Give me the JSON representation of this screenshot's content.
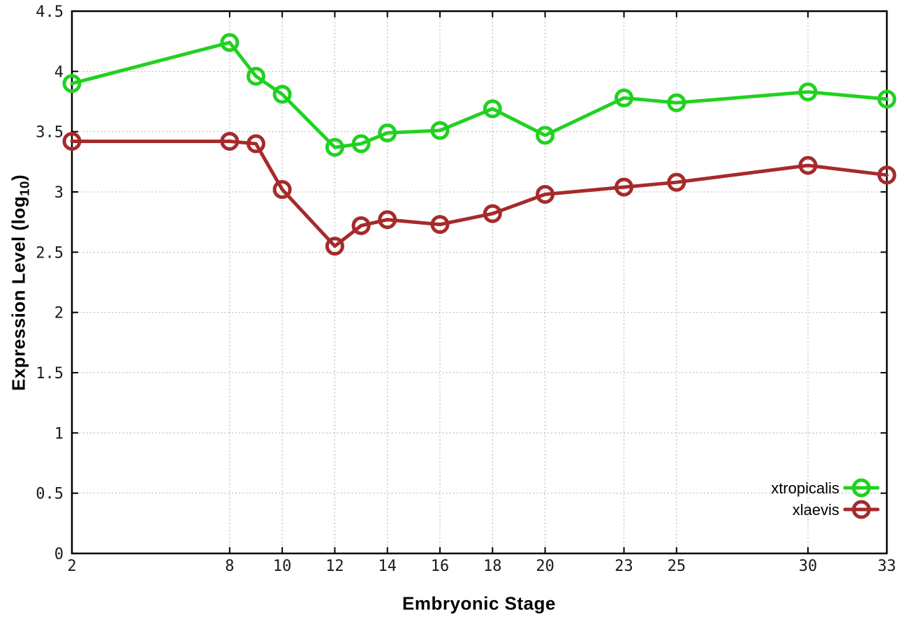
{
  "chart_data": {
    "type": "line",
    "title": "",
    "xlabel": "Embryonic Stage",
    "ylabel": "Expression Level (log10)",
    "ylabel_parts": {
      "main": "Expression Level (log",
      "sub": "10",
      "end": ")"
    },
    "xlim": [
      2,
      33
    ],
    "ylim": [
      0,
      4.5
    ],
    "xticks": [
      2,
      8,
      10,
      12,
      14,
      16,
      18,
      20,
      23,
      25,
      30,
      33
    ],
    "yticks": [
      0,
      0.5,
      1,
      1.5,
      2,
      2.5,
      3,
      3.5,
      4,
      4.5
    ],
    "grid": "dotted",
    "legend_position": "inside-bottom-right",
    "marker": "open-circle",
    "x": [
      2,
      8,
      9,
      10,
      12,
      13,
      14,
      16,
      18,
      20,
      23,
      25,
      30,
      33
    ],
    "series": [
      {
        "name": "xtropicalis",
        "color": "#21d121",
        "values": [
          3.9,
          4.24,
          3.96,
          3.81,
          3.37,
          3.4,
          3.49,
          3.51,
          3.69,
          3.47,
          3.78,
          3.74,
          3.83,
          3.77
        ]
      },
      {
        "name": "xlaevis",
        "color": "#a62a2a",
        "values": [
          3.42,
          3.42,
          3.4,
          3.02,
          2.55,
          2.72,
          2.77,
          2.73,
          2.82,
          2.98,
          3.04,
          3.08,
          3.22,
          3.14
        ]
      }
    ],
    "colors": {
      "border": "#000000",
      "grid": "#a8a8a8",
      "tick_text": "#1a1a1a"
    }
  }
}
